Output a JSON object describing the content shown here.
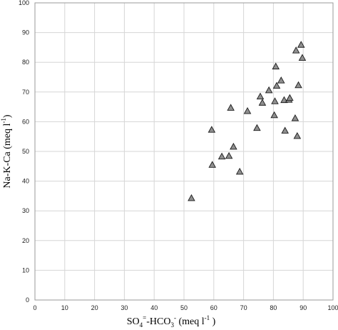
{
  "chart_data": {
    "type": "scatter",
    "title": "",
    "xlabel": "SO4=-HCO3- (meq l-1 )",
    "ylabel": "Na-K-Ca (meq l-1)",
    "xlabel_parts": {
      "a": "SO",
      "a_sub": "4",
      "a_sup": "=",
      "b": "-HCO",
      "b_sub": "3",
      "b_sup": "-",
      "c": " (meq l",
      "c_sup": "-1",
      "d": " )"
    },
    "ylabel_parts": {
      "a": "Na-K-Ca (meq l",
      "a_sup": "-1",
      "b": ")"
    },
    "xlim": [
      0,
      100
    ],
    "ylim": [
      0,
      100
    ],
    "x_ticks": [
      "0",
      "10",
      "20",
      "30",
      "40",
      "50",
      "60",
      "70",
      "80",
      "90",
      "100"
    ],
    "y_ticks": [
      "0",
      "10",
      "20",
      "30",
      "40",
      "50",
      "60",
      "70",
      "80",
      "90",
      "100"
    ],
    "grid": true,
    "marker": "triangle",
    "marker_color": "#8f8f8f",
    "points": [
      {
        "x": 52.5,
        "y": 34.3
      },
      {
        "x": 59.3,
        "y": 57.3
      },
      {
        "x": 59.5,
        "y": 45.5
      },
      {
        "x": 62.7,
        "y": 48.3
      },
      {
        "x": 65.1,
        "y": 48.5
      },
      {
        "x": 65.7,
        "y": 64.7
      },
      {
        "x": 66.6,
        "y": 51.6
      },
      {
        "x": 68.7,
        "y": 43.2
      },
      {
        "x": 71.3,
        "y": 63.6
      },
      {
        "x": 74.5,
        "y": 57.9
      },
      {
        "x": 75.6,
        "y": 68.5
      },
      {
        "x": 76.3,
        "y": 66.4
      },
      {
        "x": 78.5,
        "y": 70.6
      },
      {
        "x": 80.3,
        "y": 62.2
      },
      {
        "x": 80.5,
        "y": 66.9
      },
      {
        "x": 80.8,
        "y": 78.6
      },
      {
        "x": 81.1,
        "y": 72.1
      },
      {
        "x": 82.6,
        "y": 73.9
      },
      {
        "x": 83.6,
        "y": 67.3
      },
      {
        "x": 83.9,
        "y": 57.0
      },
      {
        "x": 85.2,
        "y": 67.4
      },
      {
        "x": 85.5,
        "y": 68.0
      },
      {
        "x": 87.3,
        "y": 61.2
      },
      {
        "x": 87.6,
        "y": 84.0
      },
      {
        "x": 88.0,
        "y": 55.2
      },
      {
        "x": 88.4,
        "y": 72.3
      },
      {
        "x": 89.3,
        "y": 85.9
      },
      {
        "x": 89.7,
        "y": 81.5
      }
    ]
  }
}
